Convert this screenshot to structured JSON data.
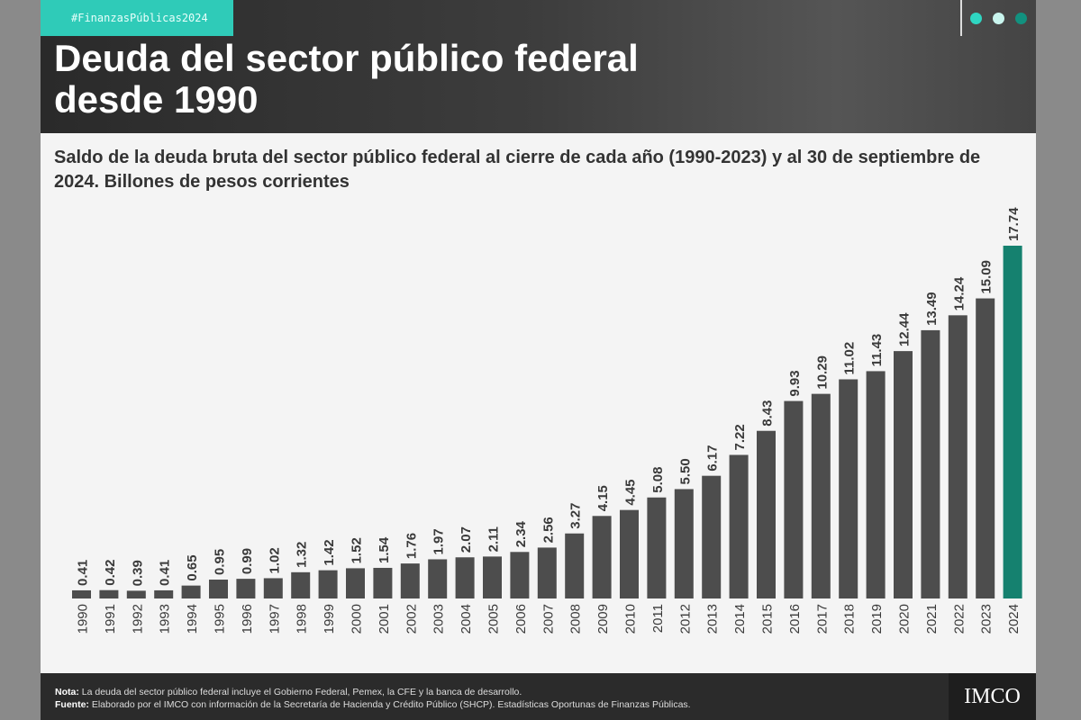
{
  "header": {
    "tag": "#FinanzasPúblicas2024",
    "title_line1": "Deuda del sector público federal",
    "title_line2": "desde 1990",
    "dots": [
      "#2fd6c2",
      "#c9f5ee",
      "#12917f"
    ]
  },
  "subtitle": "Saldo de la deuda bruta del sector público federal al cierre de cada año (1990-2023) y al 30 de septiembre de 2024. Billones de pesos corrientes",
  "colors": {
    "bar": "#4d4d4d",
    "highlight": "#15816f"
  },
  "chart_data": {
    "type": "bar",
    "categories": [
      "1990",
      "1991",
      "1992",
      "1993",
      "1994",
      "1995",
      "1996",
      "1997",
      "1998",
      "1999",
      "2000",
      "2001",
      "2002",
      "2003",
      "2004",
      "2005",
      "2006",
      "2007",
      "2008",
      "2009",
      "2010",
      "2011",
      "2012",
      "2013",
      "2014",
      "2015",
      "2016",
      "2017",
      "2018",
      "2019",
      "2020",
      "2021",
      "2022",
      "2023",
      "2024"
    ],
    "values": [
      0.41,
      0.42,
      0.39,
      0.41,
      0.65,
      0.95,
      0.99,
      1.02,
      1.32,
      1.42,
      1.52,
      1.54,
      1.76,
      1.97,
      2.07,
      2.11,
      2.34,
      2.56,
      3.27,
      4.15,
      4.45,
      5.08,
      5.5,
      6.17,
      7.22,
      8.43,
      9.93,
      10.29,
      11.02,
      11.43,
      12.44,
      13.49,
      14.24,
      15.09,
      17.74
    ],
    "labels": [
      "0.41",
      "0.42",
      "0.39",
      "0.41",
      "0.65",
      "0.95",
      "0.99",
      "1.02",
      "1.32",
      "1.42",
      "1.52",
      "1.54",
      "1.76",
      "1.97",
      "2.07",
      "2.11",
      "2.34",
      "2.56",
      "3.27",
      "4.15",
      "4.45",
      "5.08",
      "5.50",
      "6.17",
      "7.22",
      "8.43",
      "9.93",
      "10.29",
      "11.02",
      "11.43",
      "12.44",
      "13.49",
      "14.24",
      "15.09",
      "17.74"
    ],
    "highlight_category": "2024",
    "ylim": [
      0,
      17.74
    ],
    "grid": false
  },
  "footer": {
    "nota_label": "Nota:",
    "nota": " La deuda del sector público federal incluye el Gobierno Federal, Pemex, la CFE y la banca de desarrollo.",
    "fuente_label": "Fuente:",
    "fuente": " Elaborado por el IMCO con información de la Secretaría de Hacienda y Crédito Público (SHCP). Estadísticas Oportunas de Finanzas Públicas.",
    "logo": "IMCO"
  }
}
